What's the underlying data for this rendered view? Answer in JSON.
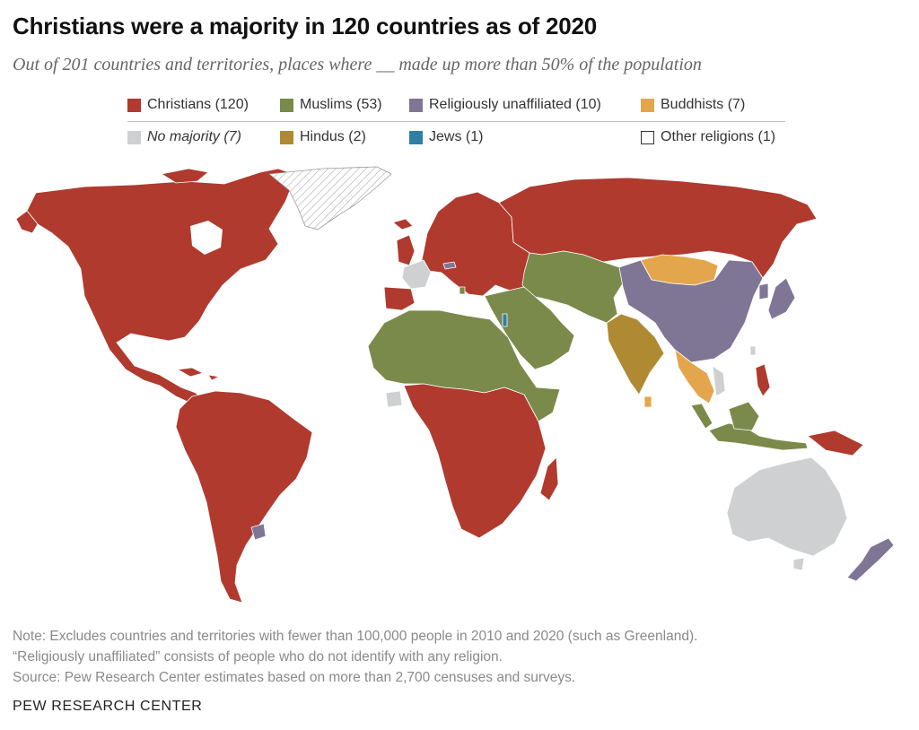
{
  "header": {
    "title": "Christians were a majority in 120 countries as of 2020",
    "subtitle": "Out of 201 countries and territories, places where __ made up more than 50% of the population"
  },
  "legend": {
    "christians": {
      "label": "Christians (120)",
      "color": "#b03a2e"
    },
    "muslims": {
      "label": "Muslims (53)",
      "color": "#7a8a4a"
    },
    "unaffiliated": {
      "label": "Religiously unaffiliated (10)",
      "color": "#7f7594"
    },
    "buddhists": {
      "label": "Buddhists (7)",
      "color": "#e4a64c"
    },
    "no_majority": {
      "label": "No majority (7)",
      "color": "#cfd0d2"
    },
    "hindus": {
      "label": "Hindus (2)",
      "color": "#b08a32"
    },
    "jews": {
      "label": "Jews (1)",
      "color": "#2f7fa6"
    },
    "other": {
      "label": "Other religions (1)",
      "color": "#ffffff"
    }
  },
  "map": {
    "excluded_pattern": "diagonal-hatch",
    "land_border_color": "#ffffff"
  },
  "notes": {
    "line1": "Note: Excludes countries and territories with fewer than 100,000 people in 2010 and 2020 (such as Greenland).",
    "line2": "“Religiously unaffiliated” consists of people who do not identify with any religion.",
    "line3": "Source: Pew Research Center estimates based on more than 2,700 censuses and surveys."
  },
  "brand": "PEW RESEARCH CENTER"
}
